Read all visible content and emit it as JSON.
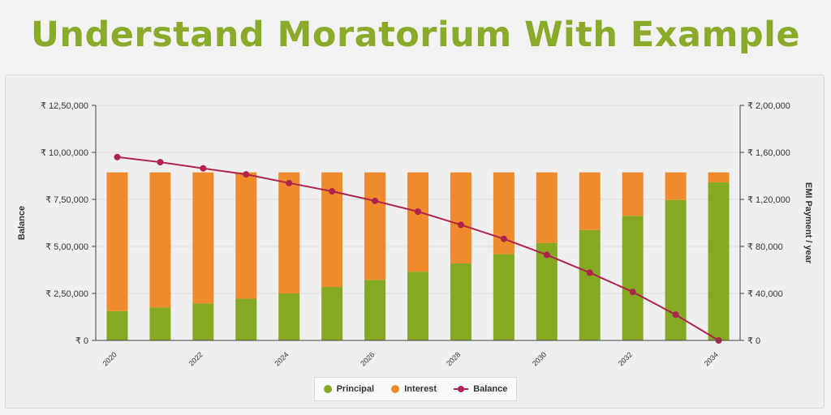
{
  "header": {
    "title": "Understand Moratorium With Example"
  },
  "colors": {
    "title": "#8aaa2a",
    "principal": "#85a923",
    "interest": "#ef8b2c",
    "balance": "#b0234b",
    "grid": "#dcdcdc",
    "axis": "#444444"
  },
  "chart_data": {
    "type": "bar",
    "stacked": true,
    "x": [
      2020,
      2021,
      2022,
      2023,
      2024,
      2025,
      2026,
      2027,
      2028,
      2029,
      2030,
      2031,
      2032,
      2033,
      2034
    ],
    "x_tick_labels": [
      "2020",
      "2022",
      "2024",
      "2026",
      "2028",
      "2030",
      "2032",
      "2034"
    ],
    "series": [
      {
        "name": "Principal",
        "axis": "right",
        "type": "bar",
        "values": [
          25000,
          28000,
          31500,
          35500,
          40000,
          45500,
          51500,
          58500,
          65500,
          73500,
          83000,
          94000,
          106000,
          119500,
          134500
        ]
      },
      {
        "name": "Interest",
        "axis": "right",
        "type": "bar",
        "values": [
          118000,
          115000,
          111500,
          107500,
          103000,
          97500,
          91500,
          84500,
          77500,
          69500,
          60000,
          49000,
          37000,
          23500,
          8500
        ]
      },
      {
        "name": "Balance",
        "axis": "left",
        "type": "line",
        "values": [
          975000,
          948000,
          915000,
          883000,
          837000,
          793000,
          742000,
          685000,
          615000,
          540000,
          455000,
          360000,
          258000,
          137000,
          0
        ]
      }
    ],
    "ylabel": "Balance",
    "y2label": "EMI Payment / year",
    "ylim": [
      0,
      1250000
    ],
    "y2lim": [
      0,
      200000
    ],
    "y_ticks": [
      "₹ 0",
      "₹ 2,50,000",
      "₹ 5,00,000",
      "₹ 7,50,000",
      "₹ 10,00,000",
      "₹ 12,50,000"
    ],
    "y2_ticks": [
      "₹ 0",
      "₹ 40,000",
      "₹ 80,000",
      "₹ 1,20,000",
      "₹ 1,60,000",
      "₹ 2,00,000"
    ],
    "grid": true,
    "legend_position": "bottom"
  }
}
